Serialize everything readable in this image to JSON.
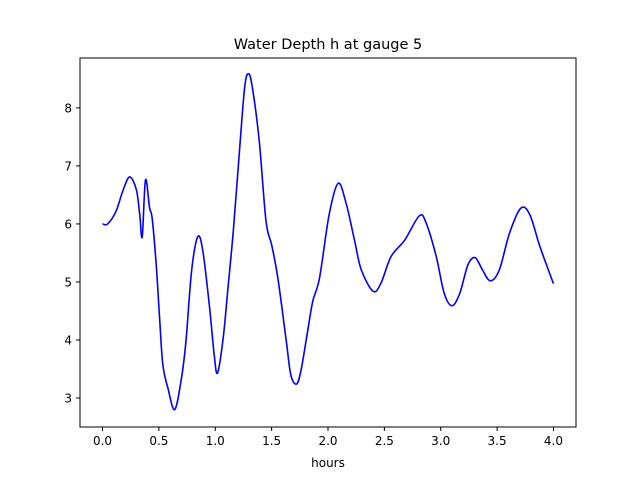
{
  "chart_data": {
    "type": "line",
    "title": "Water Depth h at gauge 5",
    "xlabel": "hours",
    "ylabel": "",
    "xlim": [
      -0.2,
      4.2
    ],
    "ylim": [
      2.5,
      8.86
    ],
    "xticks": [
      0.0,
      0.5,
      1.0,
      1.5,
      2.0,
      2.5,
      3.0,
      3.5,
      4.0
    ],
    "xtick_labels": [
      "0.0",
      "0.5",
      "1.0",
      "1.5",
      "2.0",
      "2.5",
      "3.0",
      "3.5",
      "4.0"
    ],
    "yticks": [
      3,
      4,
      5,
      6,
      7,
      8
    ],
    "ytick_labels": [
      "3",
      "4",
      "5",
      "6",
      "7",
      "8"
    ],
    "grid": false,
    "series": [
      {
        "name": "h",
        "color": "#0000ff",
        "x": [
          0,
          0.045,
          0.12,
          0.18,
          0.24,
          0.3,
          0.33,
          0.352,
          0.381,
          0.417,
          0.44,
          0.476,
          0.506,
          0.535,
          0.58,
          0.64,
          0.7,
          0.74,
          0.79,
          0.845,
          0.89,
          0.95,
          0.99,
          1.02,
          1.07,
          1.11,
          1.16,
          1.21,
          1.26,
          1.295,
          1.33,
          1.39,
          1.45,
          1.5,
          1.555,
          1.63,
          1.67,
          1.72,
          1.76,
          1.82,
          1.865,
          1.925,
          2.01,
          2.09,
          2.16,
          2.235,
          2.295,
          2.4,
          2.47,
          2.56,
          2.68,
          2.81,
          2.87,
          2.96,
          3.03,
          3.1,
          3.17,
          3.24,
          3.305,
          3.37,
          3.44,
          3.52,
          3.61,
          3.71,
          3.79,
          3.88,
          4.0
        ],
        "y": [
          6.0,
          6.0,
          6.22,
          6.57,
          6.81,
          6.59,
          6.16,
          5.78,
          6.76,
          6.28,
          6.1,
          5.3,
          4.38,
          3.57,
          3.17,
          2.8,
          3.34,
          3.98,
          5.19,
          5.78,
          5.53,
          4.55,
          3.75,
          3.43,
          4.03,
          4.84,
          5.88,
          7.14,
          8.34,
          8.59,
          8.34,
          7.43,
          6.05,
          5.64,
          5.07,
          3.98,
          3.4,
          3.24,
          3.47,
          4.16,
          4.67,
          5.07,
          6.16,
          6.7,
          6.36,
          5.72,
          5.21,
          4.84,
          4.98,
          5.44,
          5.72,
          6.14,
          6.02,
          5.44,
          4.81,
          4.59,
          4.81,
          5.29,
          5.42,
          5.21,
          5.02,
          5.21,
          5.84,
          6.27,
          6.16,
          5.61,
          4.97
        ]
      }
    ]
  }
}
